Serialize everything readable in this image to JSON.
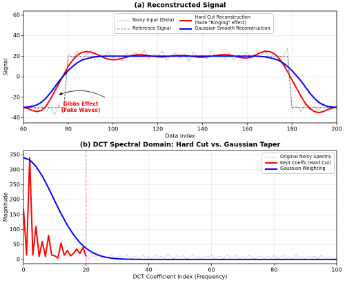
{
  "chart_data": [
    {
      "type": "line",
      "title": "(a) Reconstructed Signal",
      "x_label": "Data index",
      "y_label": "Signal",
      "xlim": [
        60,
        200
      ],
      "ylim": [
        -45,
        64
      ],
      "xticks": [
        60,
        80,
        100,
        120,
        140,
        160,
        180,
        200
      ],
      "yticks": [
        -40,
        -20,
        0,
        20,
        40,
        60
      ],
      "grid": true,
      "legend": "upper center",
      "legend_columns": 2,
      "x": [
        60,
        62,
        64,
        66,
        68,
        70,
        72,
        74,
        76,
        78,
        80,
        82,
        84,
        86,
        88,
        90,
        92,
        94,
        96,
        98,
        100,
        102,
        104,
        106,
        108,
        110,
        112,
        114,
        116,
        118,
        120,
        122,
        124,
        126,
        128,
        130,
        132,
        134,
        136,
        138,
        140,
        142,
        144,
        146,
        148,
        150,
        152,
        154,
        156,
        158,
        160,
        162,
        164,
        166,
        168,
        170,
        172,
        174,
        176,
        178,
        180,
        182,
        184,
        186,
        188,
        190,
        192,
        194,
        196,
        198,
        200
      ],
      "series": [
        {
          "name": "Noisy Input (Data)",
          "color": "#b3b3b3",
          "linewidth": 0.8,
          "style": "solid",
          "values": [
            -29,
            -31,
            -27,
            -32,
            -28,
            -33,
            -30,
            -37,
            -27,
            -35,
            22,
            18,
            25,
            17,
            21,
            26,
            16,
            22,
            19,
            24,
            18,
            21,
            15,
            23,
            20,
            24,
            19,
            26,
            17,
            22,
            20,
            25,
            16,
            21,
            23,
            18,
            22,
            15,
            24,
            19,
            21,
            17,
            25,
            20,
            22,
            18,
            23,
            16,
            21,
            19,
            24,
            17,
            22,
            20,
            26,
            18,
            23,
            20,
            19,
            28,
            -31,
            -28,
            -34,
            -27,
            -32,
            -29,
            -33,
            -26,
            -30,
            -32,
            -28
          ]
        },
        {
          "name": "Hard Cut Reconstruction\n(Note \"Ringing\" effect)",
          "color": "#ff0000",
          "linewidth": 2,
          "style": "solid",
          "values": [
            -30,
            -31,
            -33,
            -34,
            -33,
            -29,
            -22,
            -14,
            -6,
            2,
            10,
            16,
            21,
            23.5,
            24.5,
            24,
            22.5,
            20.5,
            18.5,
            17,
            16.5,
            16.8,
            17.8,
            19,
            20.3,
            21.2,
            21.5,
            21.2,
            20.5,
            19.8,
            19.3,
            19.2,
            19.5,
            20,
            20.5,
            20.7,
            20.6,
            20.2,
            19.6,
            19.1,
            19,
            19.3,
            19.9,
            20.6,
            21.3,
            21.5,
            21.1,
            20.2,
            19.2,
            18.3,
            18.2,
            19.3,
            21.5,
            23.5,
            24.8,
            24.5,
            22.5,
            18.5,
            12.5,
            5,
            -3,
            -11,
            -19,
            -26,
            -31,
            -34,
            -35,
            -34,
            -32,
            -30.5,
            -29.5
          ]
        },
        {
          "name": "Reference Signal",
          "color": "#555555",
          "linewidth": 0.8,
          "style": "dashed",
          "values": [
            -30,
            -30,
            -30,
            -30,
            -30,
            -30,
            -30,
            -30,
            -30,
            -30,
            20,
            20,
            20,
            20,
            20,
            20,
            20,
            20,
            20,
            20,
            20,
            20,
            20,
            20,
            20,
            20,
            20,
            20,
            20,
            20,
            20,
            20,
            20,
            20,
            20,
            20,
            20,
            20,
            20,
            20,
            20,
            20,
            20,
            20,
            20,
            20,
            20,
            20,
            20,
            20,
            20,
            20,
            20,
            20,
            20,
            20,
            20,
            20,
            20,
            20,
            -30,
            -30,
            -30,
            -30,
            -30,
            -30,
            -30,
            -30,
            -30,
            -30,
            -30
          ]
        },
        {
          "name": "Gaussian Smooth Reconstruction",
          "color": "#0000ff",
          "linewidth": 2,
          "style": "solid",
          "values": [
            -30,
            -29.5,
            -29,
            -27.5,
            -25,
            -21,
            -16,
            -10,
            -4,
            1,
            6,
            10,
            13.5,
            16,
            17.5,
            18.5,
            19.3,
            19.7,
            20,
            20,
            20,
            20,
            20,
            20,
            20,
            20,
            20,
            20,
            20,
            20,
            20,
            20,
            20,
            20,
            20,
            20,
            20,
            20,
            20,
            20,
            20,
            20,
            20,
            20,
            20,
            20,
            20,
            20,
            20,
            20,
            20,
            20,
            20,
            19.7,
            19.3,
            18.5,
            17.5,
            16,
            13.5,
            10,
            6,
            1,
            -4,
            -10,
            -16,
            -21,
            -25,
            -27.5,
            -29,
            -29.5,
            -30
          ]
        }
      ],
      "annotation": [
        "Gibbs Effect",
        "(Fake Waves)"
      ]
    },
    {
      "type": "line",
      "title": "(b) DCT Spectral Domain: Hard Cut vs. Gaussian Taper",
      "x_label": "DCT Coefficient Index (Frequency)",
      "y_label": "Magnitude",
      "xlim": [
        0,
        100
      ],
      "ylim": [
        -14,
        364
      ],
      "xticks": [
        0,
        20,
        40,
        60,
        80,
        100
      ],
      "yticks": [
        0,
        50,
        100,
        150,
        200,
        250,
        300,
        350
      ],
      "grid": true,
      "legend": "upper right",
      "legend_columns": 1,
      "cutoff": 20,
      "cutoff_color": "#ff0000",
      "series": [
        {
          "name": "Original Noisy Spectra",
          "color": "#c8c8c8",
          "linewidth": 0.8,
          "style": "solid",
          "x": [
            0,
            1,
            2,
            3,
            4,
            5,
            6,
            7,
            8,
            9,
            10,
            11,
            12,
            13,
            14,
            15,
            16,
            17,
            18,
            19,
            20,
            21,
            22,
            23,
            24,
            25,
            26,
            27,
            28,
            29,
            30,
            31,
            32,
            33,
            34,
            35,
            36,
            37,
            38,
            39,
            40,
            41,
            42,
            43,
            44,
            45,
            46,
            47,
            48,
            49,
            50,
            51,
            52,
            53,
            54,
            55,
            56,
            57,
            58,
            59,
            60,
            61,
            62,
            63,
            64,
            65,
            66,
            67,
            68,
            69,
            70,
            71,
            72,
            73,
            74,
            75,
            76,
            77,
            78,
            79,
            80,
            81,
            82,
            83,
            84,
            85,
            86,
            87,
            88,
            89,
            90,
            91,
            92,
            93,
            94,
            95,
            96,
            97,
            98,
            99,
            100
          ],
          "values": [
            170,
            15,
            340,
            15,
            110,
            10,
            60,
            10,
            80,
            15,
            12,
            5,
            55,
            15,
            30,
            12,
            20,
            35,
            20,
            40,
            10,
            3,
            14,
            6,
            18,
            2,
            11,
            7,
            16,
            4,
            9,
            13,
            1,
            17,
            8,
            5,
            12,
            3,
            15,
            6,
            10,
            2,
            14,
            7,
            11,
            4,
            16,
            9,
            3,
            12,
            6,
            13,
            2,
            8,
            15,
            5,
            10,
            3,
            12,
            7,
            14,
            4,
            9,
            11,
            2,
            16,
            6,
            8,
            13,
            3,
            10,
            5,
            15,
            7,
            2,
            12,
            9,
            4,
            11,
            6,
            14,
            3,
            8,
            13,
            5,
            10,
            2,
            15,
            7,
            9,
            4,
            12,
            6,
            11,
            3,
            14,
            8,
            5,
            10,
            4,
            7
          ]
        },
        {
          "name": "Kept Coeffs (Hard Cut)",
          "color": "#ff0000",
          "linewidth": 2,
          "style": "solid",
          "x": [
            0,
            1,
            2,
            3,
            4,
            5,
            6,
            7,
            8,
            9,
            10,
            11,
            12,
            13,
            14,
            15,
            16,
            17,
            18,
            19,
            20
          ],
          "values": [
            170,
            15,
            340,
            15,
            110,
            10,
            60,
            10,
            80,
            15,
            12,
            5,
            55,
            15,
            30,
            12,
            20,
            35,
            20,
            40,
            10
          ]
        },
        {
          "name": "Gaussian Weighting",
          "color": "#0000ff",
          "linewidth": 2,
          "style": "solid",
          "x": [
            0,
            2,
            4,
            6,
            8,
            10,
            12,
            14,
            16,
            18,
            20,
            22,
            24,
            26,
            28,
            30,
            32,
            34,
            36,
            38,
            40,
            50,
            60,
            70,
            80,
            90,
            100
          ],
          "values": [
            340,
            332.5,
            311,
            278.6,
            238.5,
            195.4,
            153.1,
            114.8,
            82.4,
            56.4,
            37.1,
            23.3,
            14,
            8,
            4.4,
            2.3,
            1.2,
            0.6,
            0.3,
            0.1,
            0,
            0,
            0,
            0,
            0,
            0,
            0
          ]
        }
      ]
    }
  ]
}
